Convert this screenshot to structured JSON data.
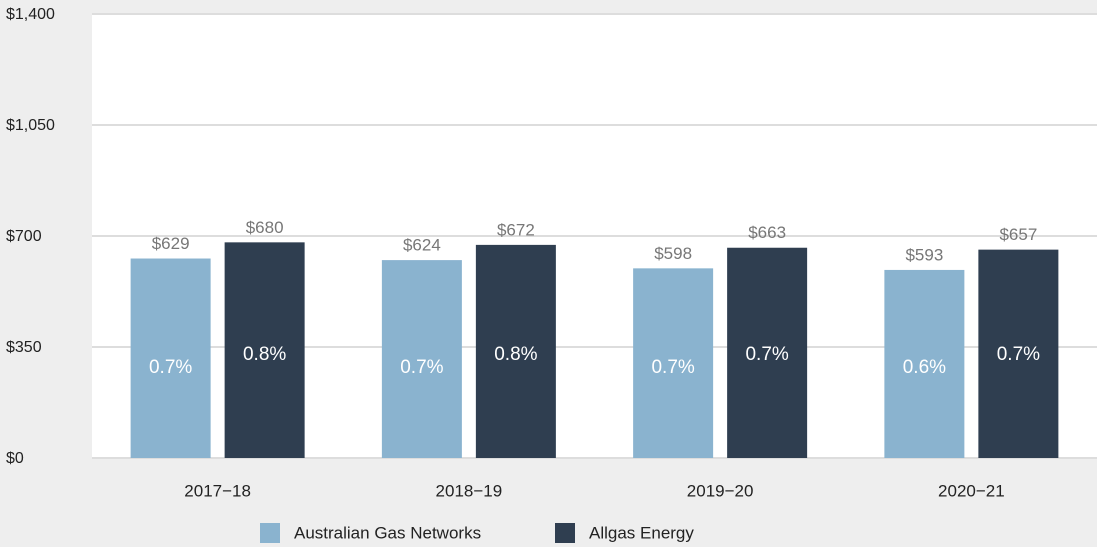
{
  "chart_data": {
    "type": "bar",
    "categories": [
      "2017−18",
      "2018−19",
      "2019−20",
      "2020−21"
    ],
    "series": [
      {
        "name": "Australian Gas Networks",
        "color": "#8ab3cf",
        "values": [
          629,
          624,
          598,
          593
        ],
        "value_labels": [
          "$629",
          "$624",
          "$598",
          "$593"
        ],
        "inner_labels": [
          "0.7%",
          "0.7%",
          "0.7%",
          "0.6%"
        ]
      },
      {
        "name": "Allgas Energy",
        "color": "#2f3e50",
        "values": [
          680,
          672,
          663,
          657
        ],
        "value_labels": [
          "$680",
          "$672",
          "$663",
          "$657"
        ],
        "inner_labels": [
          "0.8%",
          "0.8%",
          "0.7%",
          "0.7%"
        ]
      }
    ],
    "ylim": [
      0,
      1400
    ],
    "yticks": [
      {
        "value": 0,
        "label": "$0"
      },
      {
        "value": 350,
        "label": "$350"
      },
      {
        "value": 700,
        "label": "$700"
      },
      {
        "value": 1050,
        "label": "$1,050"
      },
      {
        "value": 1400,
        "label": "$1,400"
      }
    ],
    "grid": true,
    "legend": "bottom"
  }
}
